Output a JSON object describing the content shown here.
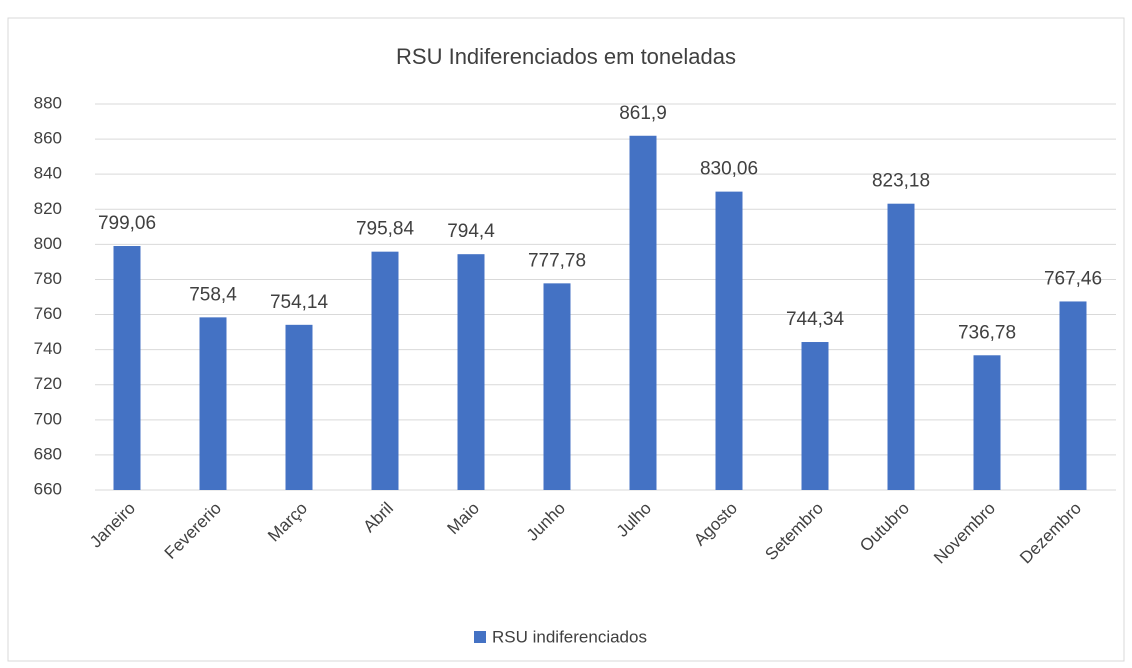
{
  "chart_data": {
    "type": "bar",
    "title": "RSU Indiferenciados em toneladas",
    "categories": [
      "Janeiro",
      "Fevererio",
      "Março",
      "Abril",
      "Maio",
      "Junho",
      "Julho",
      "Agosto",
      "Setembro",
      "Outubro",
      "Novembro",
      "Dezembro"
    ],
    "series": [
      {
        "name": "RSU indiferenciados",
        "color": "#4472c4",
        "values": [
          799.06,
          758.4,
          754.14,
          795.84,
          794.4,
          777.78,
          861.9,
          830.06,
          744.34,
          823.18,
          736.78,
          767.46
        ],
        "value_labels": [
          "799,06",
          "758,4",
          "754,14",
          "795,84",
          "794,4",
          "777,78",
          "861,9",
          "830,06",
          "744,34",
          "823,18",
          "736,78",
          "767,46"
        ]
      }
    ],
    "ylim": [
      660,
      880
    ],
    "yticks": [
      660,
      680,
      700,
      720,
      740,
      760,
      780,
      800,
      820,
      840,
      860,
      880
    ],
    "grid": true,
    "legend": "bottom"
  }
}
